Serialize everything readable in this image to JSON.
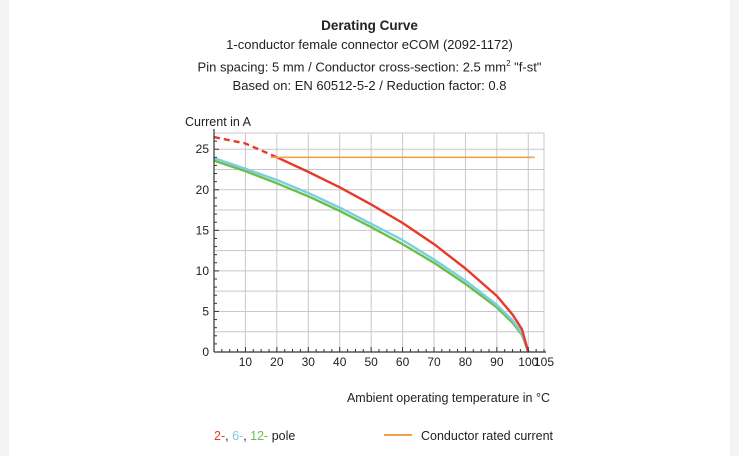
{
  "title": "Derating Curve",
  "subtitle_lines": [
    "1-conductor female connector eCOM (2092-1172)",
    "Pin spacing: 5 mm / Conductor cross-section: 2.5 mm",
    "Based on: EN 60512-5-2 / Reduction factor: 0.8"
  ],
  "subtitle_unit_suffix": "\"f-st\"",
  "superscript": "2",
  "legend": {
    "pole_parts": [
      "2-",
      ", ",
      "6-",
      ", ",
      "12-",
      " pole"
    ],
    "rated_label": "Conductor rated current"
  },
  "colors": {
    "pole2": "#e8392b",
    "pole6": "#7ccfe0",
    "pole12": "#6abf4b",
    "rated": "#f5a04a",
    "grid": "#c8c8c8",
    "axis": "#333333"
  },
  "chart_data": {
    "type": "line",
    "title": "Derating Curve",
    "ylabel": "Current in A",
    "xlabel": "Ambient operating temperature in °C",
    "xlim": [
      0,
      105
    ],
    "ylim": [
      0,
      27
    ],
    "x_ticks": [
      10,
      20,
      30,
      40,
      50,
      60,
      70,
      80,
      90,
      100,
      105
    ],
    "y_ticks": [
      0,
      5,
      10,
      15,
      20,
      25
    ],
    "grid": true,
    "legend_position": "bottom",
    "series": [
      {
        "name": "2-pole",
        "color_key": "pole2",
        "dashed_until_x": 20,
        "points": [
          [
            0,
            26.5
          ],
          [
            10,
            25.7
          ],
          [
            20,
            24.0
          ],
          [
            30,
            22.2
          ],
          [
            40,
            20.3
          ],
          [
            50,
            18.2
          ],
          [
            60,
            15.9
          ],
          [
            70,
            13.3
          ],
          [
            80,
            10.3
          ],
          [
            90,
            6.9
          ],
          [
            95,
            4.6
          ],
          [
            98,
            2.8
          ],
          [
            100,
            0
          ]
        ]
      },
      {
        "name": "6-pole",
        "color_key": "pole6",
        "points": [
          [
            0,
            23.9
          ],
          [
            10,
            22.6
          ],
          [
            20,
            21.2
          ],
          [
            30,
            19.6
          ],
          [
            40,
            17.8
          ],
          [
            50,
            15.8
          ],
          [
            60,
            13.8
          ],
          [
            70,
            11.4
          ],
          [
            80,
            8.8
          ],
          [
            90,
            5.8
          ],
          [
            95,
            3.9
          ],
          [
            98,
            2.3
          ],
          [
            100,
            0
          ]
        ]
      },
      {
        "name": "12-pole",
        "color_key": "pole12",
        "points": [
          [
            0,
            23.6
          ],
          [
            10,
            22.3
          ],
          [
            20,
            20.8
          ],
          [
            30,
            19.2
          ],
          [
            40,
            17.4
          ],
          [
            50,
            15.4
          ],
          [
            60,
            13.3
          ],
          [
            70,
            11.0
          ],
          [
            80,
            8.4
          ],
          [
            90,
            5.5
          ],
          [
            95,
            3.6
          ],
          [
            98,
            2.1
          ],
          [
            100,
            0
          ]
        ]
      },
      {
        "name": "Conductor rated current",
        "color_key": "rated",
        "points": [
          [
            18,
            24
          ],
          [
            102,
            24
          ]
        ]
      }
    ]
  }
}
